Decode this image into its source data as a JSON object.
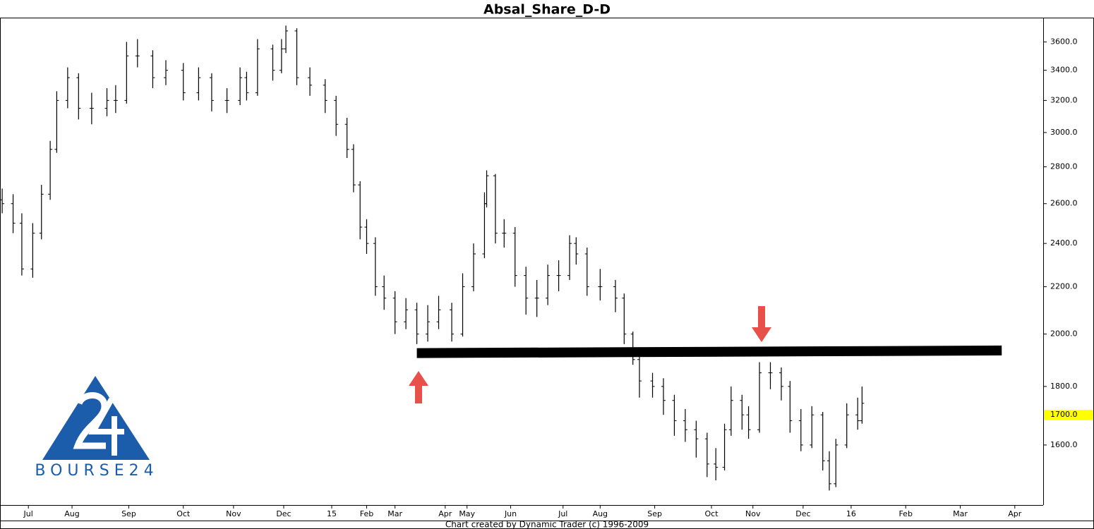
{
  "chart_data": {
    "type": "ohlc",
    "title": "Absal_Share_D-D",
    "footer": "Chart created by Dynamic Trader  (c) 1996-2009",
    "logo_text": "BOURSE24",
    "color": "#000000",
    "ylog": true,
    "grid": false,
    "xlim": [
      0,
      478
    ],
    "ylim": [
      1418,
      3780
    ],
    "yticks": [
      {
        "value": 1600,
        "label": "1600.0"
      },
      {
        "value": 1800,
        "label": "1800.0"
      },
      {
        "value": 2000,
        "label": "2000.0"
      },
      {
        "value": 2200,
        "label": "2200.0"
      },
      {
        "value": 2400,
        "label": "2400.0"
      },
      {
        "value": 2600,
        "label": "2600.0"
      },
      {
        "value": 2800,
        "label": "2800.0"
      },
      {
        "value": 3000,
        "label": "3000.0"
      },
      {
        "value": 3200,
        "label": "3200.0"
      },
      {
        "value": 3400,
        "label": "3400.0"
      },
      {
        "value": 3600,
        "label": "3600.0"
      }
    ],
    "xticks": [
      {
        "value": 13,
        "label": "Jul"
      },
      {
        "value": 33,
        "label": "Aug"
      },
      {
        "value": 59,
        "label": "Sep"
      },
      {
        "value": 84,
        "label": "Oct"
      },
      {
        "value": 107,
        "label": "Nov"
      },
      {
        "value": 130,
        "label": "Dec"
      },
      {
        "value": 152,
        "label": "15"
      },
      {
        "value": 168,
        "label": "Feb"
      },
      {
        "value": 181,
        "label": "Mar"
      },
      {
        "value": 204,
        "label": "Apr"
      },
      {
        "value": 214,
        "label": "May"
      },
      {
        "value": 234,
        "label": "Jun"
      },
      {
        "value": 258,
        "label": "Jul"
      },
      {
        "value": 275,
        "label": "Aug"
      },
      {
        "value": 300,
        "label": "Sep"
      },
      {
        "value": 326,
        "label": "Oct"
      },
      {
        "value": 345,
        "label": "Nov"
      },
      {
        "value": 368,
        "label": "Dec"
      },
      {
        "value": 390,
        "label": "16"
      },
      {
        "value": 415,
        "label": "Feb"
      },
      {
        "value": 440,
        "label": "Mar"
      },
      {
        "value": 465,
        "label": "Apr"
      }
    ],
    "last_price": {
      "value": 1700,
      "label": "1700.0",
      "color": "#ffff00"
    },
    "support": {
      "x": [
        191,
        459
      ],
      "y": [
        1925,
        1935
      ],
      "color": "#000000"
    },
    "x": [
      1,
      6,
      10,
      15,
      19,
      23,
      26,
      31,
      36,
      42,
      49,
      53,
      58,
      63,
      70,
      76,
      84,
      91,
      97,
      104,
      110,
      113,
      118,
      125,
      129,
      131,
      136,
      142,
      149,
      154,
      159,
      162,
      165,
      168,
      172,
      176,
      181,
      186,
      191,
      196,
      201,
      207,
      212,
      217,
      222,
      223,
      227,
      231,
      236,
      241,
      246,
      251,
      256,
      261,
      264,
      269,
      275,
      282,
      286,
      290,
      293,
      299,
      304,
      309,
      314,
      319,
      324,
      328,
      332,
      335,
      340,
      343,
      348,
      353,
      358,
      362,
      367,
      372,
      377,
      380,
      383,
      388,
      393,
      395
    ],
    "open": [
      2620,
      2600,
      2500,
      2280,
      2450,
      2650,
      2900,
      3200,
      3350,
      3150,
      3150,
      3200,
      3200,
      3500,
      3500,
      3350,
      3400,
      3250,
      3350,
      3200,
      3200,
      3350,
      3250,
      3550,
      3400,
      3550,
      3680,
      3350,
      3300,
      3200,
      3050,
      2900,
      2700,
      2480,
      2400,
      2200,
      2150,
      2050,
      2100,
      2000,
      2050,
      2100,
      2000,
      2200,
      2350,
      2600,
      2750,
      2450,
      2450,
      2250,
      2150,
      2150,
      2250,
      2250,
      2400,
      2350,
      2200,
      2200,
      2150,
      2000,
      1900,
      1820,
      1800,
      1750,
      1680,
      1650,
      1620,
      1540,
      1530,
      1650,
      1750,
      1700,
      1650,
      1850,
      1850,
      1800,
      1680,
      1600,
      1700,
      1550,
      1480,
      1600,
      1700,
      1680
    ],
    "high": [
      2680,
      2650,
      2550,
      2500,
      2700,
      2950,
      3260,
      3420,
      3380,
      3250,
      3280,
      3300,
      3600,
      3620,
      3540,
      3470,
      3450,
      3420,
      3380,
      3280,
      3420,
      3390,
      3620,
      3580,
      3620,
      3720,
      3700,
      3420,
      3340,
      3230,
      3090,
      2930,
      2720,
      2520,
      2430,
      2250,
      2180,
      2150,
      2130,
      2120,
      2160,
      2130,
      2260,
      2400,
      2660,
      2780,
      2760,
      2520,
      2480,
      2290,
      2230,
      2300,
      2320,
      2440,
      2430,
      2380,
      2280,
      2230,
      2170,
      2010,
      1920,
      1850,
      1830,
      1770,
      1720,
      1680,
      1640,
      1590,
      1670,
      1800,
      1770,
      1730,
      1890,
      1890,
      1870,
      1820,
      1720,
      1730,
      1710,
      1580,
      1620,
      1740,
      1760,
      1800
    ],
    "low": [
      2550,
      2450,
      2250,
      2240,
      2420,
      2620,
      2880,
      3150,
      3080,
      3050,
      3100,
      3120,
      3180,
      3420,
      3280,
      3300,
      3200,
      3200,
      3130,
      3120,
      3170,
      3200,
      3230,
      3330,
      3380,
      3520,
      3300,
      3230,
      3120,
      2980,
      2850,
      2660,
      2420,
      2350,
      2160,
      2100,
      2000,
      2020,
      1960,
      1970,
      2020,
      1970,
      1990,
      2180,
      2330,
      2580,
      2400,
      2380,
      2200,
      2080,
      2070,
      2120,
      2180,
      2230,
      2300,
      2160,
      2140,
      2090,
      1960,
      1880,
      1760,
      1760,
      1700,
      1630,
      1610,
      1560,
      1500,
      1490,
      1520,
      1630,
      1650,
      1620,
      1640,
      1790,
      1750,
      1640,
      1580,
      1590,
      1520,
      1460,
      1470,
      1590,
      1650,
      1670
    ],
    "close": [
      2600,
      2500,
      2280,
      2450,
      2650,
      2900,
      3200,
      3350,
      3150,
      3150,
      3200,
      3200,
      3500,
      3500,
      3350,
      3400,
      3250,
      3350,
      3200,
      3200,
      3350,
      3250,
      3550,
      3400,
      3550,
      3680,
      3350,
      3300,
      3200,
      3050,
      2900,
      2700,
      2480,
      2400,
      2200,
      2150,
      2050,
      2100,
      2000,
      2050,
      2100,
      2000,
      2200,
      2350,
      2600,
      2750,
      2450,
      2450,
      2250,
      2150,
      2150,
      2250,
      2250,
      2400,
      2350,
      2200,
      2200,
      2150,
      2000,
      1900,
      1820,
      1800,
      1750,
      1680,
      1650,
      1620,
      1540,
      1530,
      1650,
      1750,
      1700,
      1650,
      1850,
      1850,
      1800,
      1680,
      1600,
      1700,
      1550,
      1480,
      1600,
      1700,
      1680,
      1740
    ]
  }
}
